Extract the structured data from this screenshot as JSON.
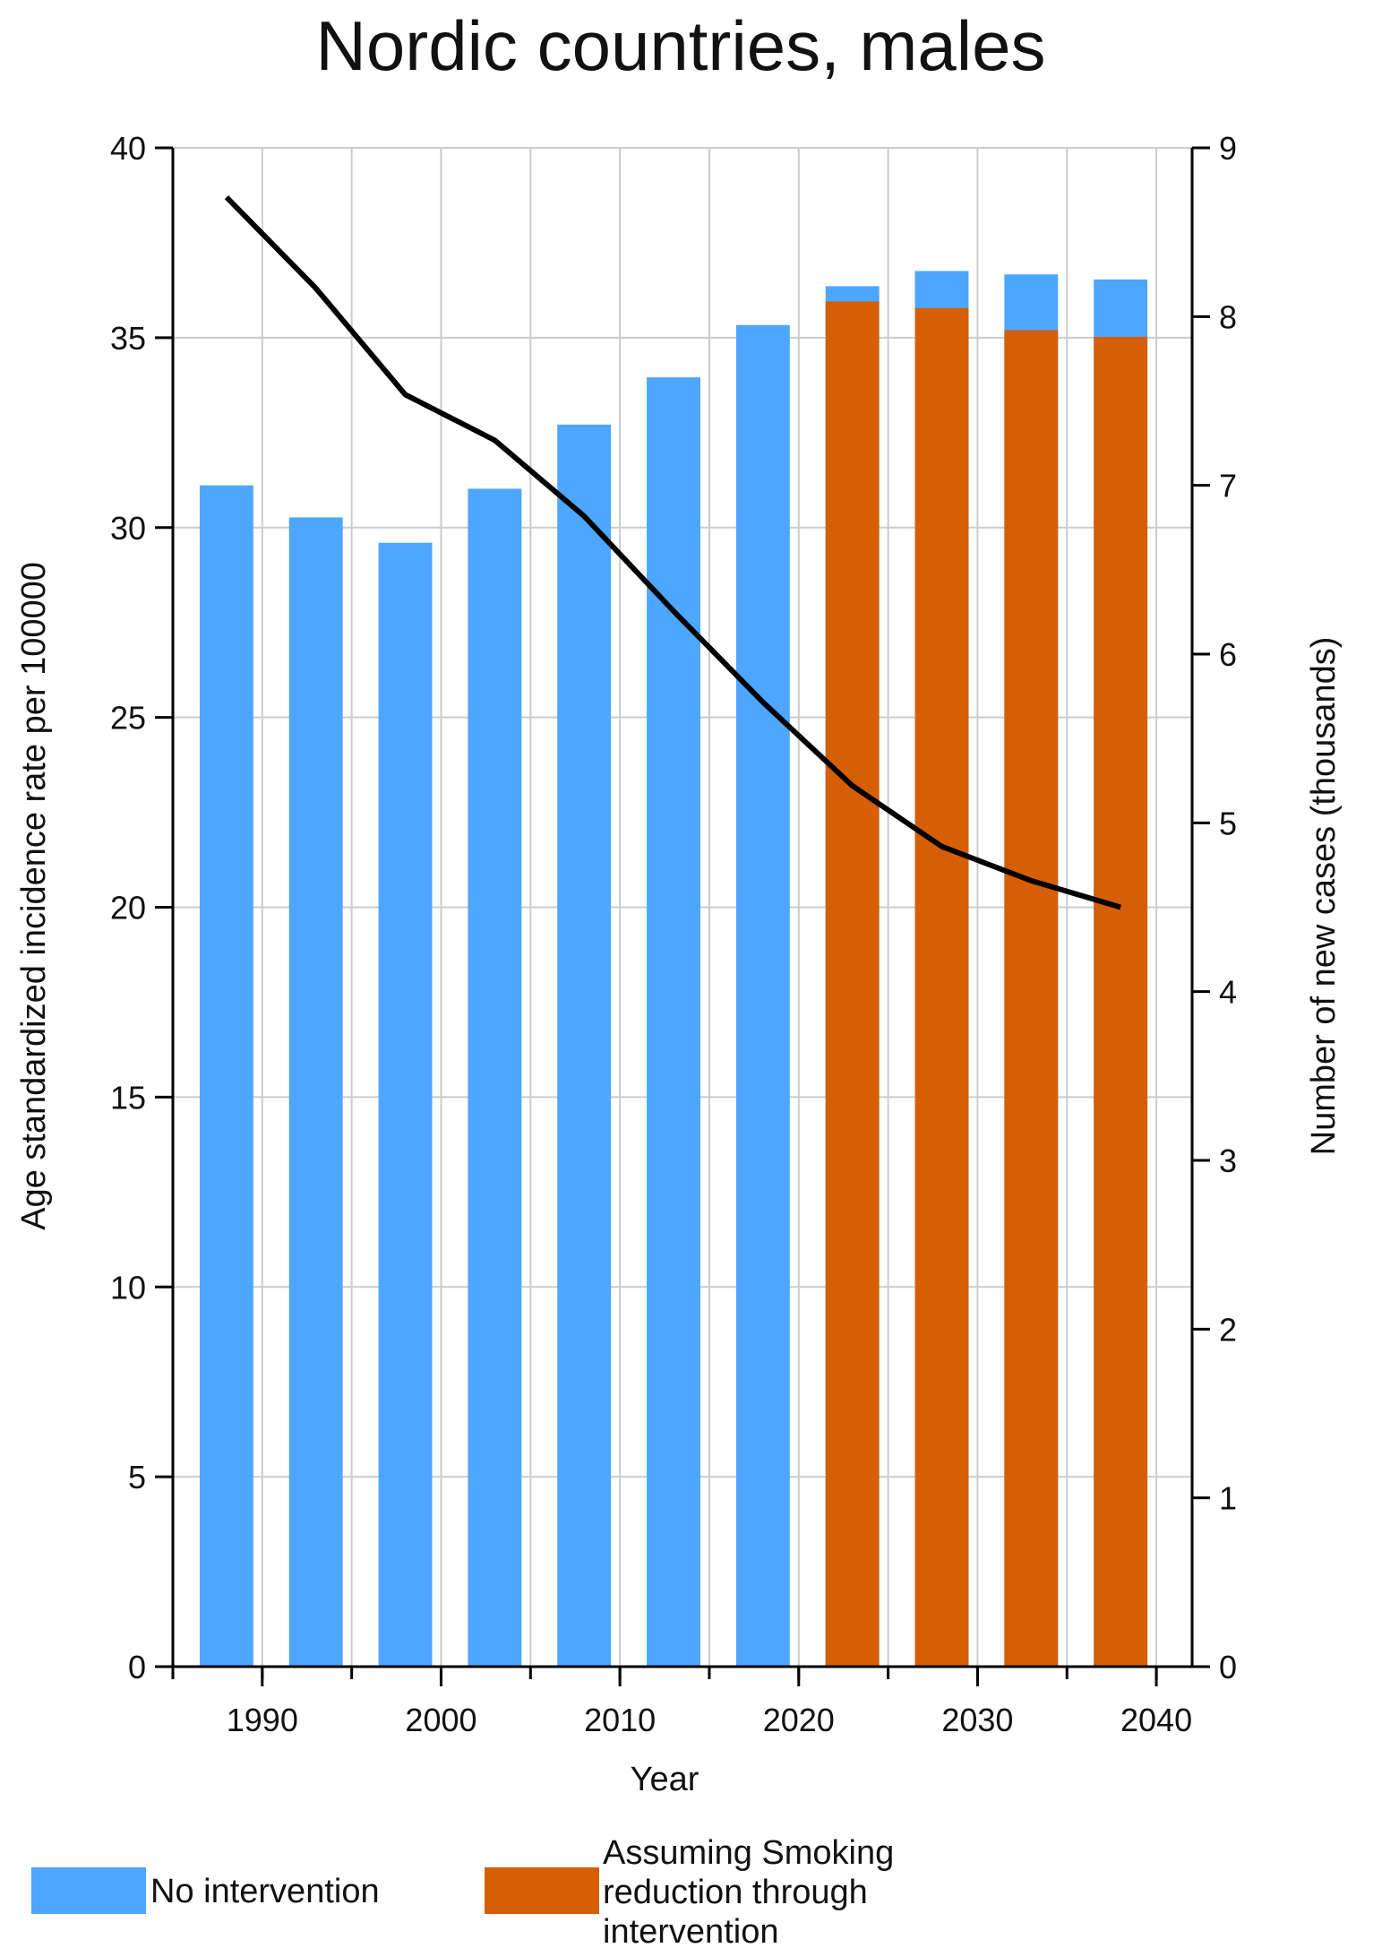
{
  "chart_data": {
    "type": "bar",
    "title": "Nordic countries, males",
    "xlabel": "Year",
    "ylabel_left": "Age standardized incidence rate per 100000",
    "ylabel_right": "Number of new cases (thousands)",
    "xlim": [
      1985,
      2042
    ],
    "ylim_left": [
      0,
      40
    ],
    "ylim_right": [
      0,
      9
    ],
    "x_ticks": [
      1990,
      2000,
      2010,
      2020,
      2030,
      2040
    ],
    "y_ticks_left": [
      0,
      5,
      10,
      15,
      20,
      25,
      30,
      35,
      40
    ],
    "y_ticks_right": [
      0,
      1,
      2,
      3,
      4,
      5,
      6,
      7,
      8,
      9
    ],
    "grid": true,
    "legend_position": "bottom",
    "colors": {
      "no_intervention": "#4da6ff",
      "intervention": "#d65f06",
      "line": "#000000",
      "grid": "#cccccc"
    },
    "bar_centers": [
      1988,
      1993,
      1998,
      2003,
      2008,
      2013,
      2018,
      2023,
      2028,
      2033,
      2038
    ],
    "bar_width_years": 3.0,
    "series": [
      {
        "name": "No intervention",
        "axis": "right",
        "values": [
          7.0,
          6.81,
          6.66,
          6.98,
          7.36,
          7.64,
          7.95,
          8.18,
          8.27,
          8.25,
          8.22
        ]
      },
      {
        "name": "Assuming Smoking reduction through intervention",
        "axis": "right",
        "values": [
          null,
          null,
          null,
          null,
          null,
          null,
          null,
          8.09,
          8.05,
          7.92,
          7.88
        ]
      },
      {
        "name": "",
        "type": "line",
        "axis": "left",
        "x": [
          1988,
          1993,
          1998,
          2003,
          2008,
          2013,
          2018,
          2023,
          2028,
          2033,
          2038
        ],
        "values": [
          38.7,
          36.3,
          33.5,
          32.3,
          30.3,
          27.8,
          25.4,
          23.2,
          21.6,
          20.7,
          20.0
        ]
      }
    ]
  },
  "legend": {
    "items": [
      {
        "label": "No intervention",
        "lines": [
          "No intervention"
        ]
      },
      {
        "label": "Assuming Smoking reduction through intervention",
        "lines": [
          "Assuming Smoking",
          "reduction through",
          "intervention"
        ]
      }
    ]
  }
}
